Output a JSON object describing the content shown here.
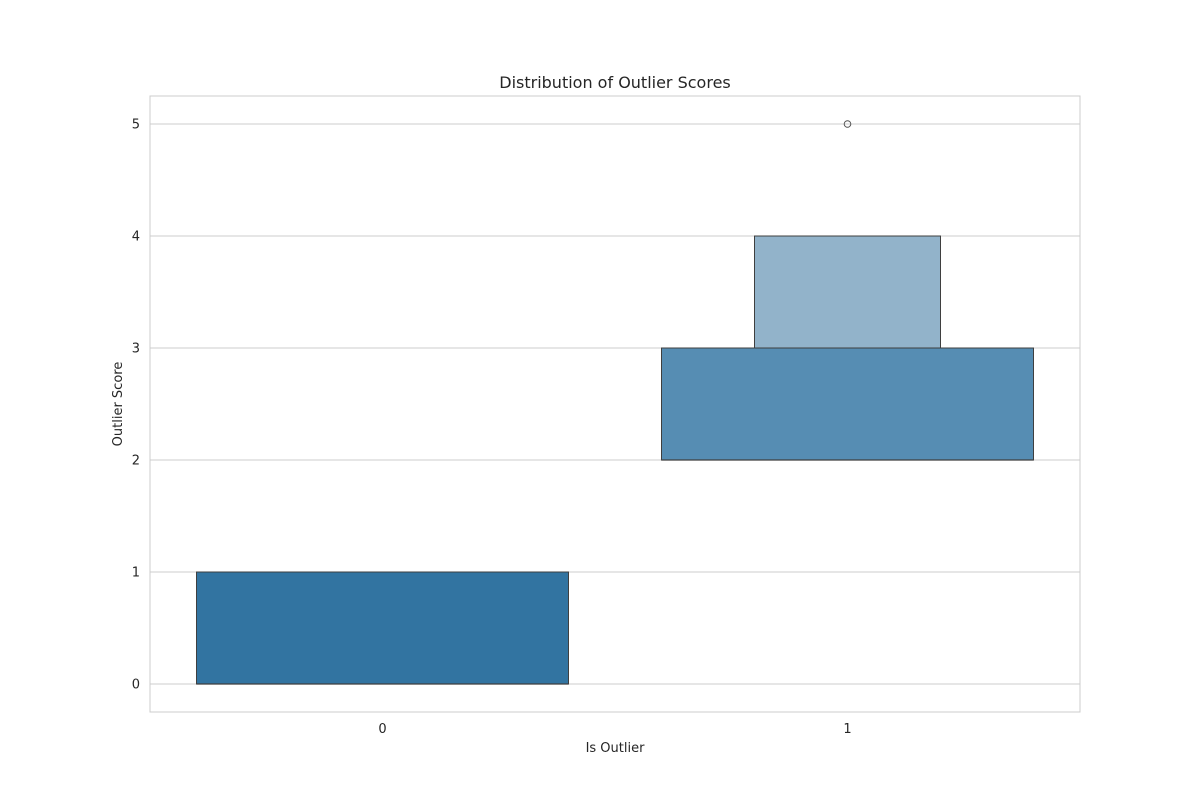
{
  "chart_data": {
    "type": "boxen",
    "title": "Distribution of Outlier Scores",
    "xlabel": "Is Outlier",
    "ylabel": "Outlier Score",
    "categories": [
      "0",
      "1"
    ],
    "yticks": [
      0,
      1,
      2,
      3,
      4,
      5
    ],
    "ylim": [
      -0.25,
      5.25
    ],
    "grid": true,
    "series": [
      {
        "category": "0",
        "color": "#3274a1",
        "letter_values": [
          {
            "low": 0,
            "high": 1,
            "color": "#3274a1"
          }
        ],
        "median": 0,
        "outliers": []
      },
      {
        "category": "1",
        "color": "#3274a1",
        "letter_values": [
          {
            "low": 2,
            "high": 3,
            "color": "#568db3"
          },
          {
            "low": 3,
            "high": 4,
            "color": "#92b3ca"
          }
        ],
        "median": 2,
        "outliers": [
          5
        ]
      }
    ]
  }
}
